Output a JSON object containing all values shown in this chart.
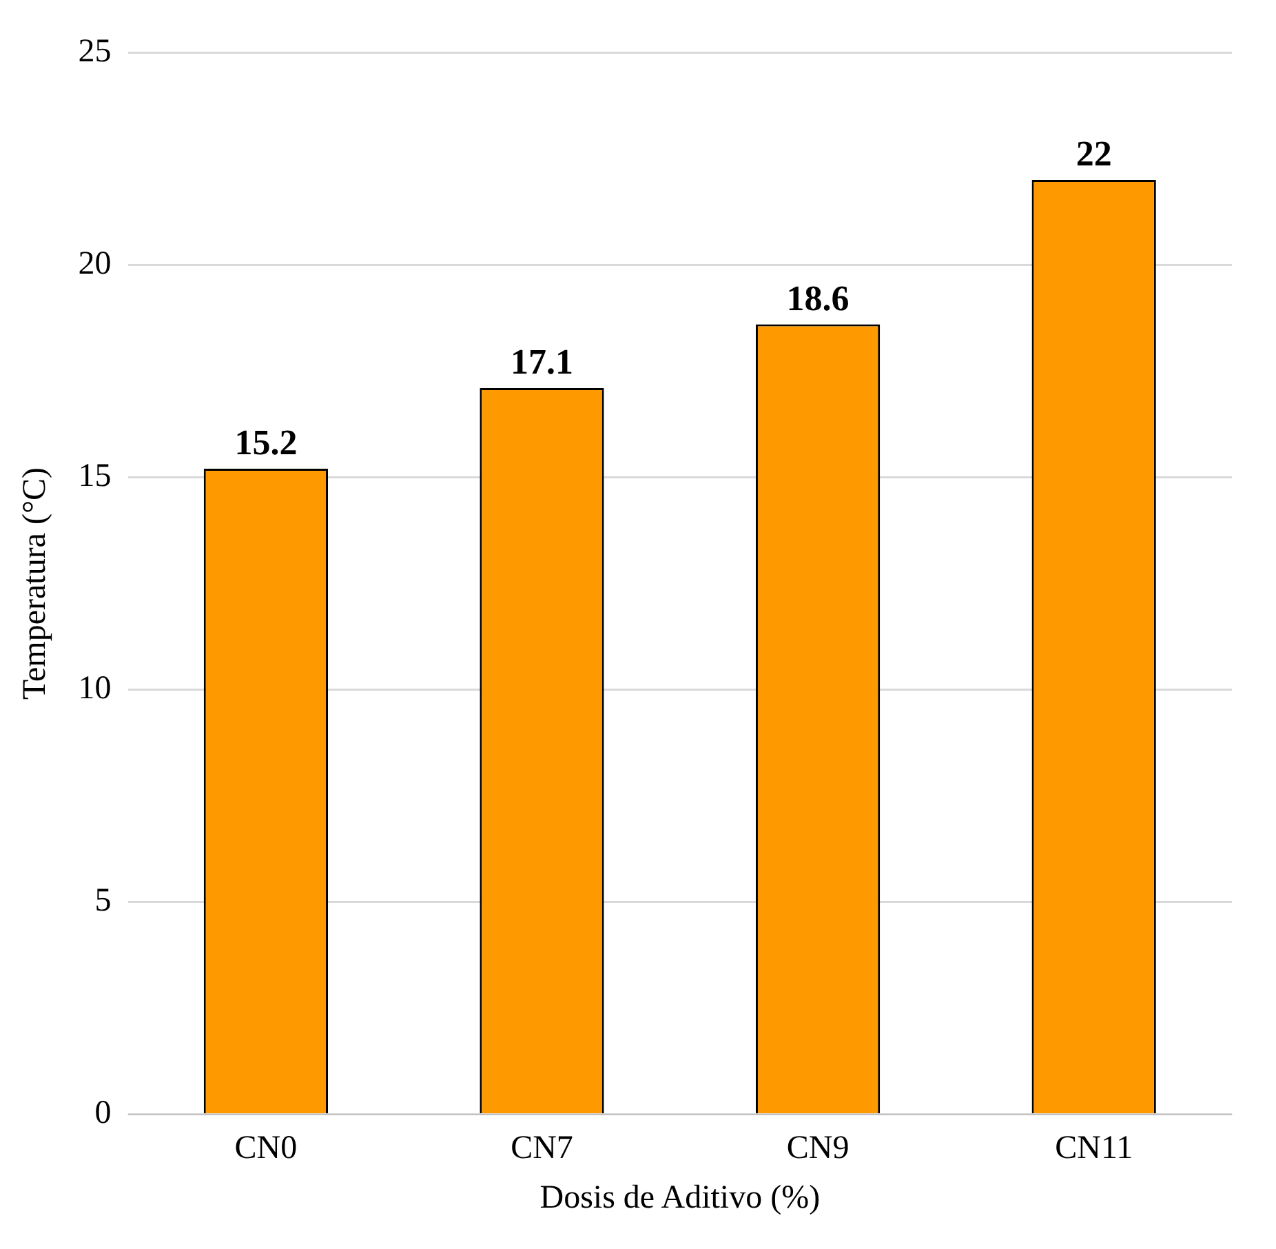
{
  "chart_data": {
    "type": "bar",
    "xlabel": "Dosis de Aditivo (%)",
    "ylabel": "Temperatura (°C)",
    "categories": [
      "CN0",
      "CN7",
      "CN9",
      "CN11"
    ],
    "values": [
      15.2,
      17.1,
      18.6,
      22
    ],
    "color": "#ff9900",
    "ylim": [
      0,
      25
    ],
    "yticks": [
      0,
      5,
      10,
      15,
      20,
      25
    ],
    "grid": "y",
    "data_labels": true,
    "legend": false
  }
}
